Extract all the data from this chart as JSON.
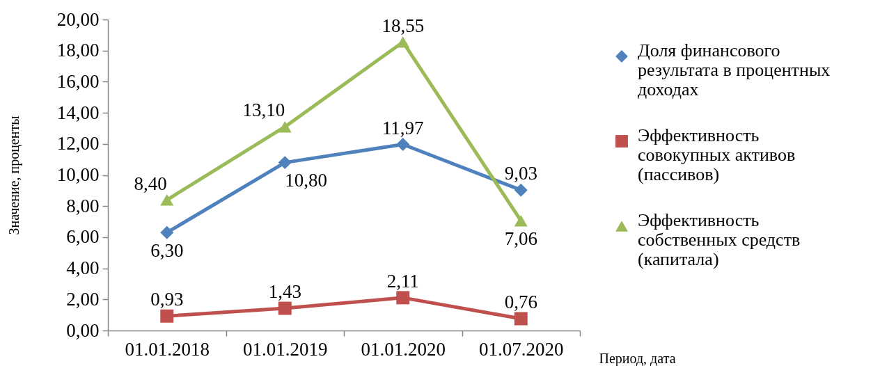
{
  "chart_data": {
    "type": "line",
    "ylabel": "Значение, проценты",
    "xlabel": "Период, дата",
    "categories": [
      "01.01.2018",
      "01.01.2019",
      "01.01.2020",
      "01.07.2020"
    ],
    "series": [
      {
        "name": "Доля финансового результата в процентных доходах",
        "color": "#4f81bd",
        "marker": "diamond",
        "values": [
          6.3,
          10.8,
          11.97,
          9.03
        ],
        "value_labels": [
          "6,30",
          "10,80",
          "11,97",
          "9,03"
        ]
      },
      {
        "name": "Эффективность совокупных активов (пассивов)",
        "color": "#c0504d",
        "marker": "square",
        "values": [
          0.93,
          1.43,
          2.11,
          0.76
        ],
        "value_labels": [
          "0,93",
          "1,43",
          "2,11",
          "0,76"
        ]
      },
      {
        "name": "Эффективность собственных средств (капитала)",
        "color": "#9bbb59",
        "marker": "triangle",
        "values": [
          8.4,
          13.1,
          18.55,
          7.06
        ],
        "value_labels": [
          "8,40",
          "13,10",
          "18,55",
          "7,06"
        ]
      }
    ],
    "ylim": [
      0,
      20
    ],
    "yticks": [
      {
        "value": 0,
        "label": "0,00"
      },
      {
        "value": 2,
        "label": "2,00"
      },
      {
        "value": 4,
        "label": "4,00"
      },
      {
        "value": 6,
        "label": "6,00"
      },
      {
        "value": 8,
        "label": "8,00"
      },
      {
        "value": 10,
        "label": "10,00"
      },
      {
        "value": 12,
        "label": "12,00"
      },
      {
        "value": 14,
        "label": "14,00"
      },
      {
        "value": 16,
        "label": "16,00"
      },
      {
        "value": 18,
        "label": "18,00"
      },
      {
        "value": 20,
        "label": "20,00"
      }
    ],
    "grid": false,
    "legend": "right",
    "line_style": "solid"
  }
}
